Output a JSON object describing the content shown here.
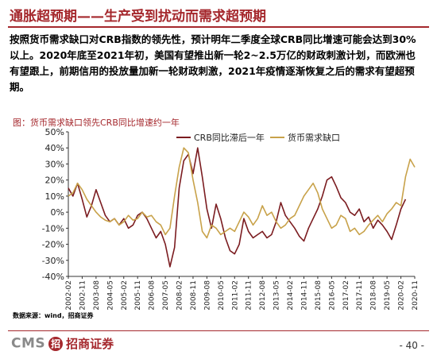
{
  "header": {
    "title": "通胀超预期——生产受到扰动而需求超预期",
    "body": "按照货币需求缺口对CRB指数的领先性，预计明年二季度全球CRB同比增速可能会达到30%以上。2020年底至2021年初，美国有望推出新一轮2~2.5万亿的财政刺激计划，而欧洲也有望跟上，前期信用的投放量加新一轮财政刺激，2021年疫情逐渐恢复之后的需求有望超预期。"
  },
  "figure": {
    "caption": "图：货币需求缺口领先CRB同比增速约一年",
    "source": "数据来源：wind，招商证券"
  },
  "footer": {
    "brand_cms": "CMS",
    "brand_logo": "招",
    "brand_name": "招商证券",
    "page": "- 40 -"
  },
  "colors": {
    "accent": "#a5282d",
    "crb": "#7b1c20",
    "gap": "#c8a24a"
  },
  "chart_data": {
    "type": "line",
    "title": "",
    "xlabel": "",
    "ylabel": "",
    "ylim": [
      -40,
      50
    ],
    "yticks": [
      -40,
      -30,
      -20,
      -10,
      0,
      10,
      20,
      30,
      40,
      50
    ],
    "ytick_labels": [
      "-40%",
      "-30%",
      "-20%",
      "-10%",
      "0%",
      "10%",
      "20%",
      "30%",
      "40%",
      "50%"
    ],
    "xlim": [
      "2002-02",
      "2020-11"
    ],
    "xtick_labels": [
      "2002-02",
      "2002-11",
      "2003-08",
      "2004-05",
      "2005-02",
      "2005-11",
      "2006-08",
      "2007-05",
      "2008-02",
      "2008-11",
      "2009-08",
      "2010-05",
      "2011-02",
      "2011-11",
      "2012-08",
      "2013-05",
      "2014-02",
      "2014-11",
      "2015-08",
      "2016-05",
      "2017-02",
      "2017-11",
      "2018-08",
      "2019-05",
      "2020-02",
      "2020-11"
    ],
    "grid": false,
    "legend_position": "top",
    "series": [
      {
        "name": "CRB同比滞后一年",
        "color": "#7b1c20",
        "points": [
          [
            "2002-02",
            15
          ],
          [
            "2002-05",
            10
          ],
          [
            "2002-08",
            18
          ],
          [
            "2002-11",
            8
          ],
          [
            "2003-02",
            -3
          ],
          [
            "2003-05",
            4
          ],
          [
            "2003-08",
            14
          ],
          [
            "2003-11",
            6
          ],
          [
            "2004-02",
            -2
          ],
          [
            "2004-05",
            -6
          ],
          [
            "2004-08",
            -4
          ],
          [
            "2004-11",
            -8
          ],
          [
            "2005-02",
            -4
          ],
          [
            "2005-05",
            -10
          ],
          [
            "2005-08",
            -8
          ],
          [
            "2005-11",
            -2
          ],
          [
            "2006-02",
            0
          ],
          [
            "2006-05",
            -4
          ],
          [
            "2006-08",
            -10
          ],
          [
            "2006-11",
            -16
          ],
          [
            "2007-02",
            -12
          ],
          [
            "2007-05",
            -20
          ],
          [
            "2007-08",
            -34
          ],
          [
            "2007-11",
            -22
          ],
          [
            "2008-02",
            15
          ],
          [
            "2008-05",
            32
          ],
          [
            "2008-08",
            36
          ],
          [
            "2008-11",
            24
          ],
          [
            "2009-02",
            40
          ],
          [
            "2009-05",
            22
          ],
          [
            "2009-08",
            2
          ],
          [
            "2009-11",
            -10
          ],
          [
            "2010-02",
            5
          ],
          [
            "2010-05",
            -4
          ],
          [
            "2010-08",
            -16
          ],
          [
            "2010-11",
            -24
          ],
          [
            "2011-02",
            -26
          ],
          [
            "2011-05",
            -20
          ],
          [
            "2011-08",
            -4
          ],
          [
            "2011-11",
            -12
          ],
          [
            "2012-02",
            -16
          ],
          [
            "2012-05",
            -14
          ],
          [
            "2012-08",
            -12
          ],
          [
            "2012-11",
            -16
          ],
          [
            "2013-02",
            -14
          ],
          [
            "2013-05",
            -6
          ],
          [
            "2013-08",
            6
          ],
          [
            "2013-11",
            -2
          ],
          [
            "2014-02",
            -6
          ],
          [
            "2014-05",
            -10
          ],
          [
            "2014-08",
            -15
          ],
          [
            "2014-11",
            -18
          ],
          [
            "2015-02",
            -10
          ],
          [
            "2015-05",
            -4
          ],
          [
            "2015-08",
            2
          ],
          [
            "2015-11",
            10
          ],
          [
            "2016-02",
            20
          ],
          [
            "2016-05",
            22
          ],
          [
            "2016-08",
            16
          ],
          [
            "2016-11",
            9
          ],
          [
            "2017-02",
            6
          ],
          [
            "2017-05",
            0
          ],
          [
            "2017-08",
            -2
          ],
          [
            "2017-11",
            2
          ],
          [
            "2018-02",
            -6
          ],
          [
            "2018-05",
            -3
          ],
          [
            "2018-08",
            -10
          ],
          [
            "2018-11",
            -5
          ],
          [
            "2019-02",
            -8
          ],
          [
            "2019-05",
            -12
          ],
          [
            "2019-08",
            -17
          ],
          [
            "2019-11",
            -8
          ],
          [
            "2020-02",
            2
          ],
          [
            "2020-05",
            8
          ]
        ]
      },
      {
        "name": "货币需求缺口",
        "color": "#c8a24a",
        "points": [
          [
            "2002-02",
            10
          ],
          [
            "2002-05",
            12
          ],
          [
            "2002-08",
            18
          ],
          [
            "2002-11",
            14
          ],
          [
            "2003-02",
            8
          ],
          [
            "2003-05",
            4
          ],
          [
            "2003-08",
            0
          ],
          [
            "2003-11",
            -3
          ],
          [
            "2004-02",
            -5
          ],
          [
            "2004-05",
            -6
          ],
          [
            "2004-08",
            -4
          ],
          [
            "2004-11",
            -8
          ],
          [
            "2005-02",
            -6
          ],
          [
            "2005-05",
            -2
          ],
          [
            "2005-08",
            -5
          ],
          [
            "2005-11",
            -4
          ],
          [
            "2006-02",
            0
          ],
          [
            "2006-05",
            -3
          ],
          [
            "2006-08",
            -2
          ],
          [
            "2006-11",
            -6
          ],
          [
            "2007-02",
            -8
          ],
          [
            "2007-05",
            -14
          ],
          [
            "2007-08",
            -10
          ],
          [
            "2007-11",
            10
          ],
          [
            "2008-02",
            28
          ],
          [
            "2008-05",
            40
          ],
          [
            "2008-08",
            37
          ],
          [
            "2008-11",
            20
          ],
          [
            "2009-02",
            6
          ],
          [
            "2009-05",
            -12
          ],
          [
            "2009-08",
            -16
          ],
          [
            "2009-11",
            -8
          ],
          [
            "2010-02",
            -10
          ],
          [
            "2010-05",
            -14
          ],
          [
            "2010-08",
            -12
          ],
          [
            "2010-11",
            -10
          ],
          [
            "2011-02",
            -12
          ],
          [
            "2011-05",
            -6
          ],
          [
            "2011-08",
            0
          ],
          [
            "2011-11",
            -3
          ],
          [
            "2012-02",
            -8
          ],
          [
            "2012-05",
            -4
          ],
          [
            "2012-08",
            4
          ],
          [
            "2012-11",
            -2
          ],
          [
            "2013-02",
            0
          ],
          [
            "2013-05",
            -6
          ],
          [
            "2013-08",
            -10
          ],
          [
            "2013-11",
            -8
          ],
          [
            "2014-02",
            -4
          ],
          [
            "2014-05",
            -2
          ],
          [
            "2014-08",
            4
          ],
          [
            "2014-11",
            10
          ],
          [
            "2015-02",
            14
          ],
          [
            "2015-05",
            18
          ],
          [
            "2015-08",
            12
          ],
          [
            "2015-11",
            2
          ],
          [
            "2016-02",
            -4
          ],
          [
            "2016-05",
            -10
          ],
          [
            "2016-08",
            -8
          ],
          [
            "2016-11",
            -2
          ],
          [
            "2017-02",
            -4
          ],
          [
            "2017-05",
            -12
          ],
          [
            "2017-08",
            -10
          ],
          [
            "2017-11",
            -14
          ],
          [
            "2018-02",
            -12
          ],
          [
            "2018-05",
            -8
          ],
          [
            "2018-08",
            -5
          ],
          [
            "2018-11",
            -2
          ],
          [
            "2019-02",
            -6
          ],
          [
            "2019-05",
            -1
          ],
          [
            "2019-08",
            2
          ],
          [
            "2019-11",
            6
          ],
          [
            "2020-02",
            4
          ],
          [
            "2020-05",
            22
          ],
          [
            "2020-08",
            33
          ],
          [
            "2020-11",
            28
          ]
        ]
      }
    ]
  }
}
